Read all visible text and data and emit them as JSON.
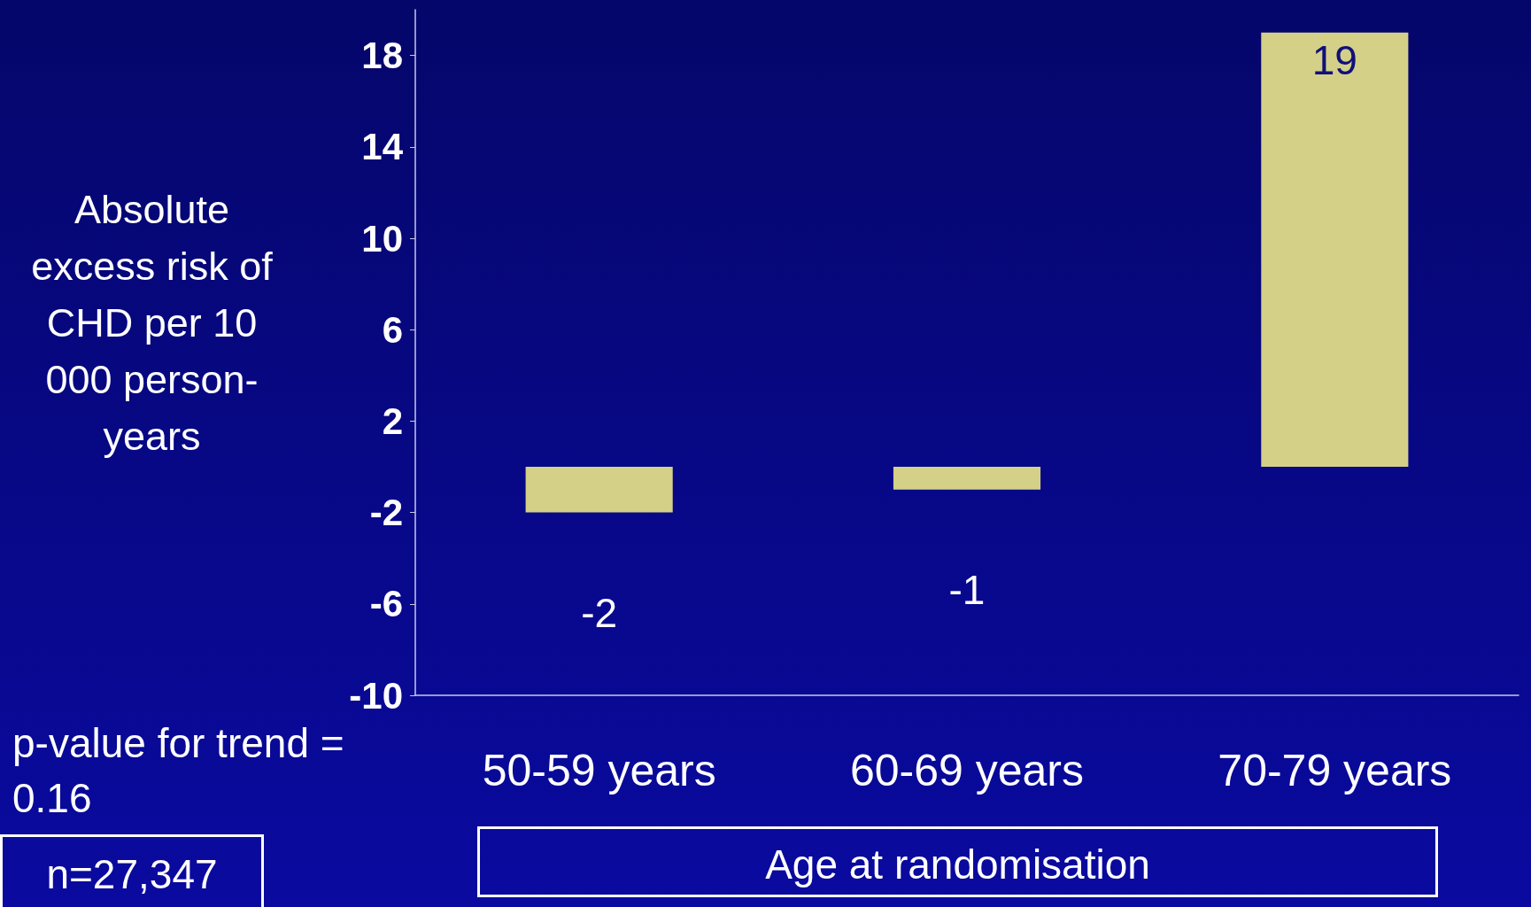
{
  "chart_data": {
    "type": "bar",
    "ylabel": "Absolute excess risk of CHD per 10 000 person-years",
    "xlabel": "Age at randomisation",
    "categories": [
      "50-59 years",
      "60-69 years",
      "70-79 years"
    ],
    "values": [
      -2,
      -1,
      19
    ],
    "color": "#d4d088",
    "data_labels": true,
    "ylim": [
      -10,
      20
    ],
    "yticks": [
      -10,
      -6,
      -2,
      2,
      6,
      10,
      14,
      18
    ],
    "grid": false,
    "annotations": [
      "p-value for trend = 0.16",
      "n=27,347"
    ]
  }
}
